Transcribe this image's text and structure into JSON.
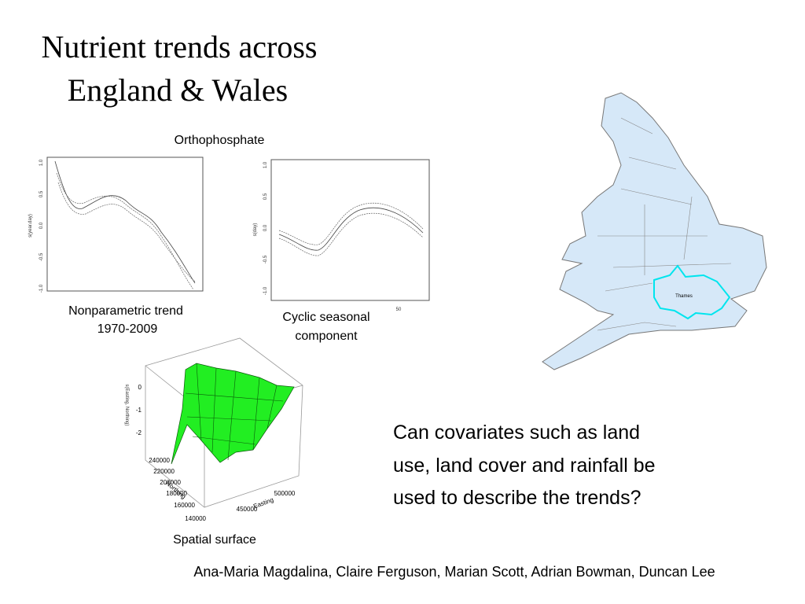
{
  "title": [
    "Nutrient trends across",
    "England & Wales"
  ],
  "figure_title": "Orthophosphate",
  "plots": [
    {
      "y_label": "s(year.day)",
      "y_ticks": [
        "1.0",
        "0.5",
        "0.0",
        "-0.5",
        "-1.0"
      ],
      "caption": [
        "Nonparametric trend",
        "1970-2009"
      ]
    },
    {
      "y_label": "s(day)",
      "y_ticks": [
        "1.0",
        "0.5",
        "0.0",
        "-0.5",
        "-1.0"
      ],
      "x_ticks": [
        "50"
      ],
      "caption": [
        "Cyclic seasonal",
        "component"
      ]
    }
  ],
  "surface": {
    "z_label": "s(Easting, Northing)",
    "z_ticks": [
      "0",
      "-1",
      "-2"
    ],
    "y_label": "Northing",
    "y_ticks": [
      "240000",
      "220000",
      "200000",
      "180000",
      "160000",
      "140000"
    ],
    "x_label": "Easting",
    "x_ticks": [
      "450000",
      "500000"
    ],
    "caption": "Spatial surface"
  },
  "map": {
    "label": "Thames"
  },
  "question": [
    "Can covariates such as land",
    "use, land cover and rainfall be",
    "used to describe the trends?"
  ],
  "authors": "Ana-Maria Magdalina, Claire Ferguson, Marian Scott, Adrian Bowman, Duncan Lee"
}
